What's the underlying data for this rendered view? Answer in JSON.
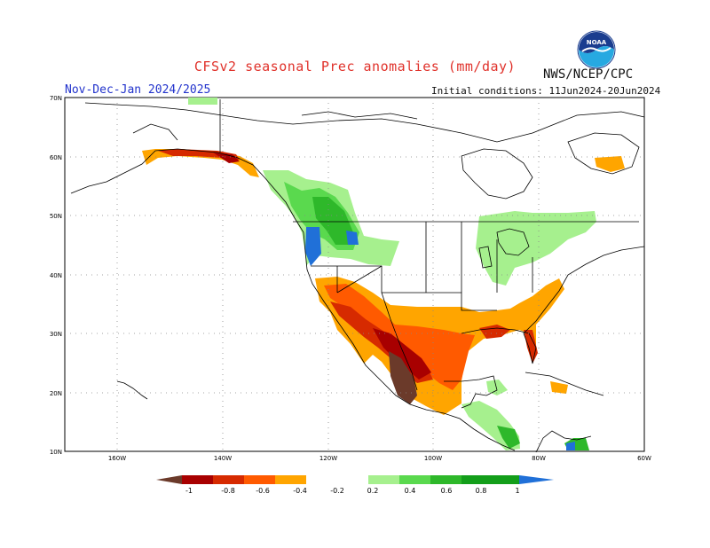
{
  "header": {
    "title": "CFSv2 seasonal Prec anomalies (mm/day)",
    "organization": "NWS/NCEP/CPC",
    "season": "Nov-Dec-Jan 2024/2025",
    "initial_conditions": "Initial conditions: 11Jun2024-20Jun2024",
    "logo_text": "NOAA"
  },
  "map": {
    "lat_labels": [
      "70N",
      "60N",
      "50N",
      "40N",
      "30N",
      "20N",
      "10N"
    ],
    "lon_labels": [
      "160W",
      "140W",
      "120W",
      "100W",
      "80W",
      "60W"
    ],
    "grid": true
  },
  "legend": {
    "labels": [
      "-1",
      "-0.8",
      "-0.6",
      "-0.4",
      "-0.2",
      "0.2",
      "0.4",
      "0.6",
      "0.8",
      "1"
    ],
    "colors": [
      "#6b3a2a",
      "#a80000",
      "#d62a00",
      "#ff5a00",
      "#ffa500",
      "#ffffff",
      "#a6f08e",
      "#5ad94e",
      "#2eb82a",
      "#139e1a",
      "#2070d8"
    ]
  }
}
